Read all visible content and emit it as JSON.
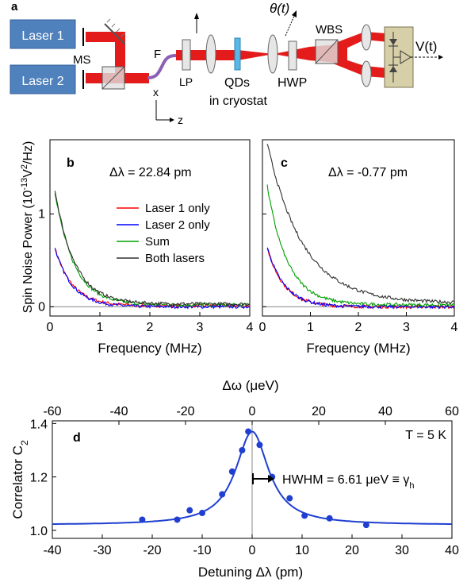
{
  "panel_a": {
    "panel_label": "a",
    "laser1_label": "Laser 1",
    "laser2_label": "Laser 2",
    "ms_label": "MS",
    "f_label": "F",
    "lp_label": "LP",
    "qds_label": "QDs",
    "cryostat_label": "in cryostat",
    "hwp_label": "HWP",
    "theta_label": "θ(t)",
    "wbs_label": "WBS",
    "output_label": "V(t)",
    "axis_x_label": "x",
    "axis_z_label": "z",
    "colors": {
      "laser_box": "#4f81bd",
      "beam": "#e31b1b",
      "detector": "#d6cfa7"
    }
  },
  "panel_b": {
    "panel_label": "b",
    "annotation": "Δλ = 22.84 pm",
    "legend": [
      "Laser 1 only",
      "Laser 2 only",
      "Sum",
      "Both lasers"
    ]
  },
  "panel_c": {
    "panel_label": "c",
    "annotation": "Δλ = -0.77 pm"
  },
  "spin_noise_axes": {
    "ylabel_prefix": "Spin Noise Power (10",
    "ylabel_exp": "-13",
    "ylabel_mid": "V",
    "ylabel_exp2": "2",
    "ylabel_suffix": "/Hz)",
    "xlabel": "Frequency (MHz)",
    "x_ticks": [
      "0",
      "1",
      "2",
      "3",
      "4"
    ],
    "y_ticks": [
      "0",
      "1"
    ]
  },
  "panel_d": {
    "panel_label": "d",
    "top_axis_label": "Δω (μeV)",
    "top_ticks": [
      "-60",
      "-40",
      "-20",
      "0",
      "20",
      "40",
      "60"
    ],
    "bottom_ticks": [
      "-40",
      "-30",
      "-20",
      "-10",
      "0",
      "10",
      "20",
      "30",
      "40"
    ],
    "y_ticks": [
      "1.0",
      "1.2",
      "1.4"
    ],
    "xlabel": "Detuning Δλ (pm)",
    "ylabel_main": "Correlator C",
    "ylabel_sub": "2",
    "temp_label": "T = 5 K",
    "hwhm_text": "HWHM = 6.61 μeV ≡ γ",
    "hwhm_sub": "h"
  },
  "chart_data": [
    {
      "type": "line",
      "panel": "b",
      "xlabel": "Frequency (MHz)",
      "ylabel": "Spin Noise Power (10^-13 V^2/Hz)",
      "xlim": [
        0,
        4
      ],
      "ylim": [
        -0.1,
        1.8
      ],
      "series": [
        {
          "name": "Laser 1 only",
          "color": "#ff0000",
          "amp": 0.62,
          "tau": 0.35,
          "offset": 0.01
        },
        {
          "name": "Laser 2 only",
          "color": "#0000ff",
          "amp": 0.63,
          "tau": 0.35,
          "offset": 0.0
        },
        {
          "name": "Sum",
          "color": "#00a000",
          "amp": 1.22,
          "tau": 0.38,
          "offset": 0.02
        },
        {
          "name": "Both lasers",
          "color": "#303030",
          "amp": 1.23,
          "tau": 0.39,
          "offset": 0.03
        }
      ]
    },
    {
      "type": "line",
      "panel": "c",
      "xlabel": "Frequency (MHz)",
      "xlim": [
        0,
        4
      ],
      "ylim": [
        -0.1,
        1.8
      ],
      "series": [
        {
          "name": "Laser 1 only",
          "color": "#ff0000",
          "amp": 0.63,
          "tau": 0.36,
          "offset": 0.0
        },
        {
          "name": "Laser 2 only",
          "color": "#0000ff",
          "amp": 0.64,
          "tau": 0.36,
          "offset": 0.0
        },
        {
          "name": "Sum",
          "color": "#00a000",
          "amp": 1.28,
          "tau": 0.42,
          "offset": 0.02
        },
        {
          "name": "Both lasers",
          "color": "#303030",
          "amp": 1.72,
          "tau": 0.75,
          "offset": 0.04
        }
      ]
    },
    {
      "type": "scatter",
      "panel": "d",
      "xlabel": "Detuning Δλ (pm)",
      "ylabel": "Correlator C2",
      "xlim": [
        -40,
        40
      ],
      "ylim": [
        0.97,
        1.41
      ],
      "points": [
        {
          "x": -22,
          "y": 1.04
        },
        {
          "x": -15,
          "y": 1.04
        },
        {
          "x": -12.5,
          "y": 1.075
        },
        {
          "x": -10,
          "y": 1.065
        },
        {
          "x": -6,
          "y": 1.135
        },
        {
          "x": -4,
          "y": 1.22
        },
        {
          "x": -2,
          "y": 1.3
        },
        {
          "x": -0.77,
          "y": 1.37
        },
        {
          "x": 1.5,
          "y": 1.32
        },
        {
          "x": 4,
          "y": 1.2
        },
        {
          "x": 7.5,
          "y": 1.12
        },
        {
          "x": 10.5,
          "y": 1.055
        },
        {
          "x": 15.5,
          "y": 1.045
        },
        {
          "x": 22.84,
          "y": 1.02
        }
      ],
      "fit": {
        "baseline": 1.02,
        "peak": 1.37,
        "hwhm_pm": 4.0,
        "center": 0
      },
      "color": "#1f3fd0"
    }
  ]
}
